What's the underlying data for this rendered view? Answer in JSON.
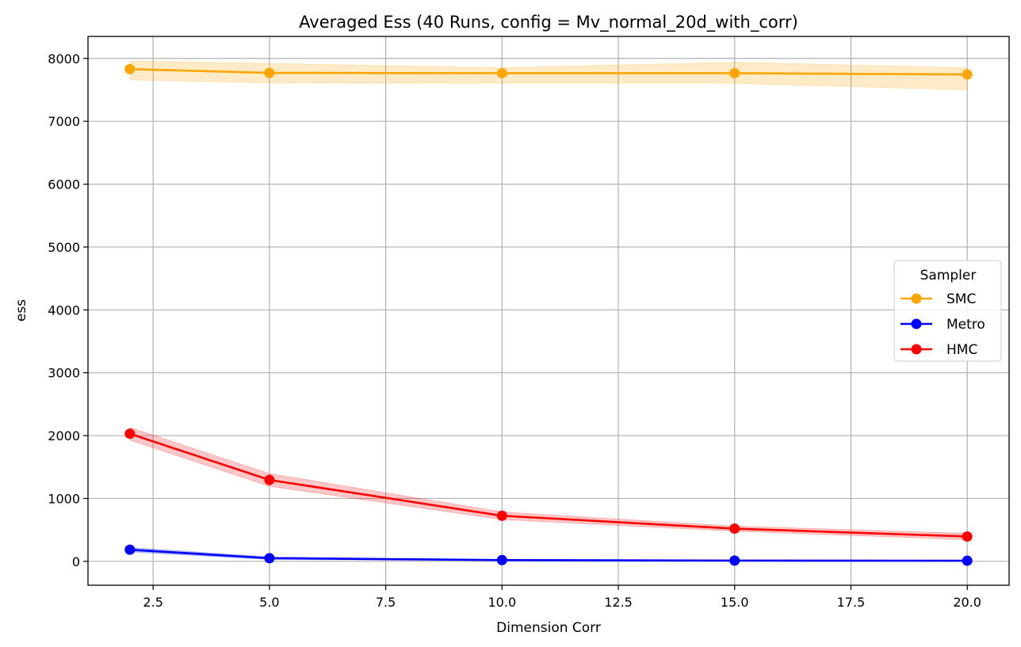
{
  "chart_data": {
    "type": "line",
    "title": "Averaged Ess (40 Runs, config = Mv_normal_20d_with_corr)",
    "xlabel": "Dimension Corr",
    "ylabel": "ess",
    "x": [
      2,
      5,
      10,
      15,
      20
    ],
    "xlim": [
      1.1,
      20.9
    ],
    "ylim": [
      -380,
      8350
    ],
    "xticks": [
      2.5,
      5.0,
      7.5,
      10.0,
      12.5,
      15.0,
      17.5,
      20.0
    ],
    "xtick_labels": [
      "2.5",
      "5.0",
      "7.5",
      "10.0",
      "12.5",
      "15.0",
      "17.5",
      "20.0"
    ],
    "yticks": [
      0,
      1000,
      2000,
      3000,
      4000,
      5000,
      6000,
      7000,
      8000
    ],
    "ytick_labels": [
      "0",
      "1000",
      "2000",
      "3000",
      "4000",
      "5000",
      "6000",
      "7000",
      "8000"
    ],
    "grid": true,
    "legend": {
      "title": "Sampler",
      "placement": "center-right",
      "entries": [
        "SMC",
        "Metro",
        "HMC"
      ]
    },
    "series": [
      {
        "name": "SMC",
        "color": "#ffa500",
        "values": [
          7830,
          7770,
          7765,
          7765,
          7745
        ],
        "band_low": [
          7660,
          7610,
          7605,
          7605,
          7500
        ],
        "band_high": [
          7960,
          7920,
          7850,
          7940,
          7850
        ]
      },
      {
        "name": "Metro",
        "color": "#0000ff",
        "values": [
          185,
          50,
          20,
          12,
          10
        ],
        "band_low": [
          150,
          30,
          10,
          5,
          3
        ],
        "band_high": [
          220,
          70,
          30,
          20,
          17
        ]
      },
      {
        "name": "HMC",
        "color": "#ff0000",
        "values": [
          2030,
          1295,
          725,
          520,
          395
        ],
        "band_low": [
          1930,
          1195,
          665,
          480,
          345
        ],
        "band_high": [
          2130,
          1395,
          785,
          560,
          445
        ]
      }
    ]
  }
}
